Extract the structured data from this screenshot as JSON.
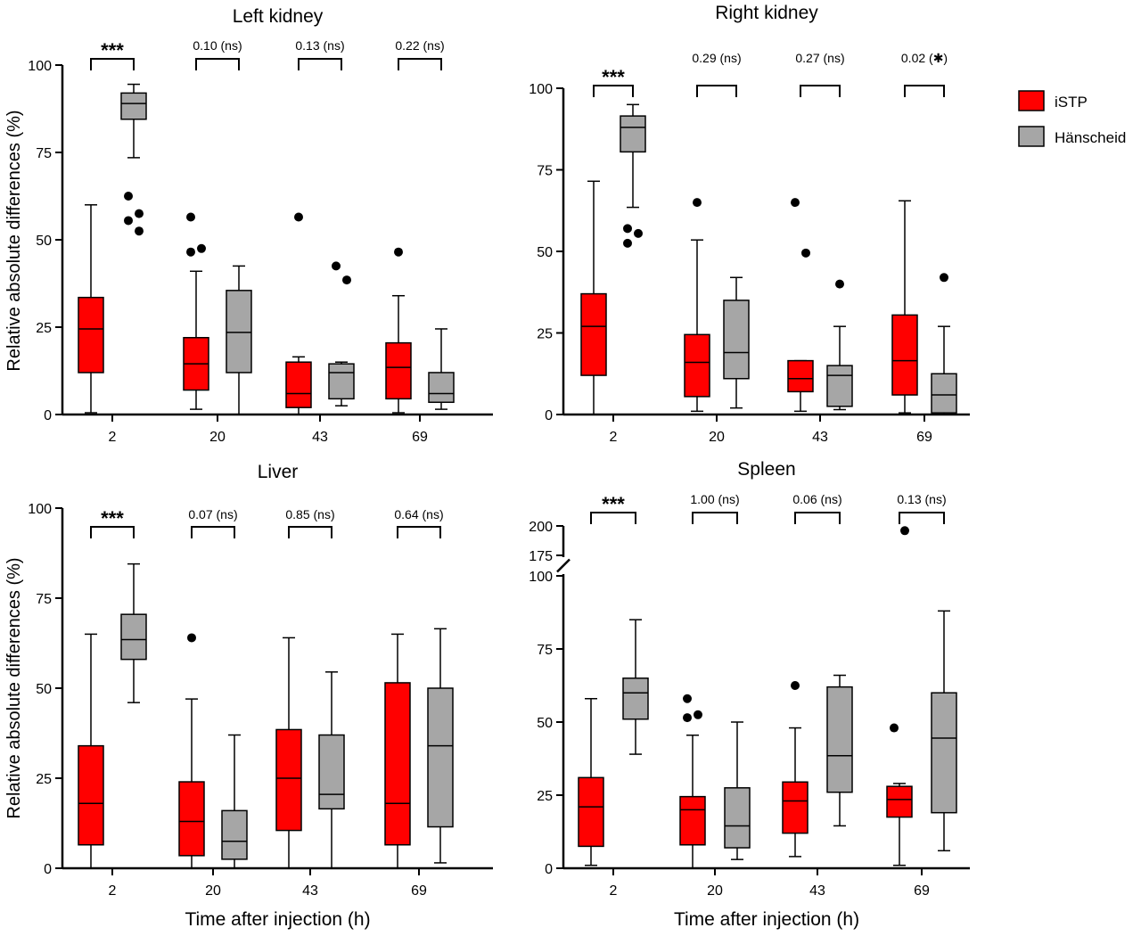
{
  "chart_data": [
    {
      "type": "box",
      "title": "Left  kidney",
      "ylabel": "Relative absolute differences (%)",
      "xlabel": "",
      "categories": [
        "2",
        "20",
        "43",
        "69"
      ],
      "ylim": [
        0,
        100
      ],
      "yticks": [
        0,
        25,
        50,
        75,
        100
      ],
      "significance": [
        "***",
        "0.10 (ns)",
        "0.13 (ns)",
        "0.22 (ns)"
      ],
      "series": [
        {
          "name": "iSTP",
          "boxes": [
            {
              "min": 0.5,
              "q1": 12,
              "median": 24.5,
              "q3": 33.5,
              "max": 60,
              "outliers": []
            },
            {
              "min": 1.5,
              "q1": 7,
              "median": 14.5,
              "q3": 22,
              "max": 41,
              "outliers": [
                46.5,
                47.5,
                56.5
              ]
            },
            {
              "min": 0,
              "q1": 2,
              "median": 6,
              "q3": 15,
              "max": 16.5,
              "outliers": [
                56.5
              ]
            },
            {
              "min": 0.5,
              "q1": 4.5,
              "median": 13.5,
              "q3": 20.5,
              "max": 34,
              "outliers": [
                46.5
              ]
            }
          ]
        },
        {
          "name": "Hänscheid",
          "boxes": [
            {
              "min": 73.5,
              "q1": 84.5,
              "median": 89,
              "q3": 92,
              "max": 94.5,
              "outliers": [
                62.5,
                57.5,
                55.5,
                52.5
              ]
            },
            {
              "min": 0,
              "q1": 12,
              "median": 23.5,
              "q3": 35.5,
              "max": 42.5,
              "outliers": []
            },
            {
              "min": 2.5,
              "q1": 4.5,
              "median": 12,
              "q3": 14.5,
              "max": 15,
              "outliers": [
                42.5,
                38.5
              ]
            },
            {
              "min": 1.5,
              "q1": 3.5,
              "median": 6,
              "q3": 12,
              "max": 24.5,
              "outliers": []
            }
          ]
        }
      ]
    },
    {
      "type": "box",
      "title": "Right  kidney",
      "ylabel": "",
      "xlabel": "",
      "categories": [
        "2",
        "20",
        "43",
        "69"
      ],
      "ylim": [
        0,
        100
      ],
      "yticks": [
        0,
        25,
        50,
        75,
        100
      ],
      "significance": [
        "***",
        "0.29 (ns)",
        "0.27 (ns)",
        "0.02 (✱)"
      ],
      "series": [
        {
          "name": "iSTP",
          "boxes": [
            {
              "min": 0,
              "q1": 12,
              "median": 27,
              "q3": 37,
              "max": 71.5,
              "outliers": []
            },
            {
              "min": 1,
              "q1": 5.5,
              "median": 16,
              "q3": 24.5,
              "max": 53.5,
              "outliers": [
                65
              ]
            },
            {
              "min": 1,
              "q1": 7,
              "median": 11,
              "q3": 16.5,
              "max": 16.5,
              "outliers": [
                65,
                49.5
              ]
            },
            {
              "min": 0.5,
              "q1": 6,
              "median": 16.5,
              "q3": 30.5,
              "max": 65.5,
              "outliers": []
            }
          ]
        },
        {
          "name": "Hänscheid",
          "boxes": [
            {
              "min": 63.5,
              "q1": 80.5,
              "median": 88,
              "q3": 91.5,
              "max": 95,
              "outliers": [
                57,
                55.5,
                52.5
              ]
            },
            {
              "min": 2,
              "q1": 11,
              "median": 19,
              "q3": 35,
              "max": 42,
              "outliers": []
            },
            {
              "min": 1.5,
              "q1": 2.5,
              "median": 12,
              "q3": 15,
              "max": 27,
              "outliers": [
                40
              ]
            },
            {
              "min": 0,
              "q1": 0.5,
              "median": 6,
              "q3": 12.5,
              "max": 27,
              "outliers": [
                42
              ]
            }
          ]
        }
      ]
    },
    {
      "type": "box",
      "title": "Liver",
      "ylabel": "Relative absolute differences (%)",
      "xlabel": "Time after injection (h)",
      "categories": [
        "2",
        "20",
        "43",
        "69"
      ],
      "ylim": [
        0,
        100
      ],
      "yticks": [
        0,
        25,
        50,
        75,
        100
      ],
      "significance": [
        "***",
        "0.07 (ns)",
        "0.85 (ns)",
        "0.64 (ns)"
      ],
      "series": [
        {
          "name": "iSTP",
          "boxes": [
            {
              "min": 0,
              "q1": 6.5,
              "median": 18,
              "q3": 34,
              "max": 65,
              "outliers": []
            },
            {
              "min": 0,
              "q1": 3.5,
              "median": 13,
              "q3": 24,
              "max": 47,
              "outliers": [
                64
              ]
            },
            {
              "min": 0,
              "q1": 10.5,
              "median": 25,
              "q3": 38.5,
              "max": 64,
              "outliers": []
            },
            {
              "min": 0,
              "q1": 6.5,
              "median": 18,
              "q3": 51.5,
              "max": 65,
              "outliers": []
            }
          ]
        },
        {
          "name": "Hänscheid",
          "boxes": [
            {
              "min": 46,
              "q1": 58,
              "median": 63.5,
              "q3": 70.5,
              "max": 84.5,
              "outliers": []
            },
            {
              "min": 0,
              "q1": 2.5,
              "median": 7.5,
              "q3": 16,
              "max": 37,
              "outliers": []
            },
            {
              "min": 0,
              "q1": 16.5,
              "median": 20.5,
              "q3": 37,
              "max": 54.5,
              "outliers": []
            },
            {
              "min": 1.5,
              "q1": 11.5,
              "median": 34,
              "q3": 50,
              "max": 66.5,
              "outliers": []
            }
          ]
        }
      ]
    },
    {
      "type": "box",
      "title": "Spleen",
      "ylabel": "",
      "xlabel": "Time after injection (h)",
      "categories": [
        "2",
        "20",
        "43",
        "69"
      ],
      "ylim": [
        0,
        200
      ],
      "axis_break": [
        100,
        175
      ],
      "yticks": [
        0,
        25,
        50,
        75,
        100,
        175,
        200
      ],
      "significance": [
        "***",
        "1.00 (ns)",
        "0.06 (ns)",
        "0.13 (ns)"
      ],
      "series": [
        {
          "name": "iSTP",
          "boxes": [
            {
              "min": 1,
              "q1": 7.5,
              "median": 21,
              "q3": 31,
              "max": 58,
              "outliers": []
            },
            {
              "min": 0,
              "q1": 8,
              "median": 20,
              "q3": 24.5,
              "max": 45.5,
              "outliers": [
                58,
                52.5,
                51.5
              ]
            },
            {
              "min": 4,
              "q1": 12,
              "median": 23,
              "q3": 29.5,
              "max": 48,
              "outliers": [
                62.5
              ]
            },
            {
              "min": 1,
              "q1": 17.5,
              "median": 23.5,
              "q3": 28,
              "max": 29,
              "outliers": [
                48,
                196
              ]
            }
          ]
        },
        {
          "name": "Hänscheid",
          "boxes": [
            {
              "min": 39,
              "q1": 51,
              "median": 60,
              "q3": 65,
              "max": 85,
              "outliers": []
            },
            {
              "min": 3,
              "q1": 7,
              "median": 14.5,
              "q3": 27.5,
              "max": 50,
              "outliers": []
            },
            {
              "min": 14.5,
              "q1": 26,
              "median": 38.5,
              "q3": 62,
              "max": 66,
              "outliers": []
            },
            {
              "min": 6,
              "q1": 19,
              "median": 44.5,
              "q3": 60,
              "max": 88,
              "outliers": []
            }
          ]
        }
      ]
    }
  ],
  "legend": [
    {
      "label": "iSTP",
      "color": "#ff0000"
    },
    {
      "label": "Hänscheid",
      "color": "#a6a6a6"
    }
  ]
}
